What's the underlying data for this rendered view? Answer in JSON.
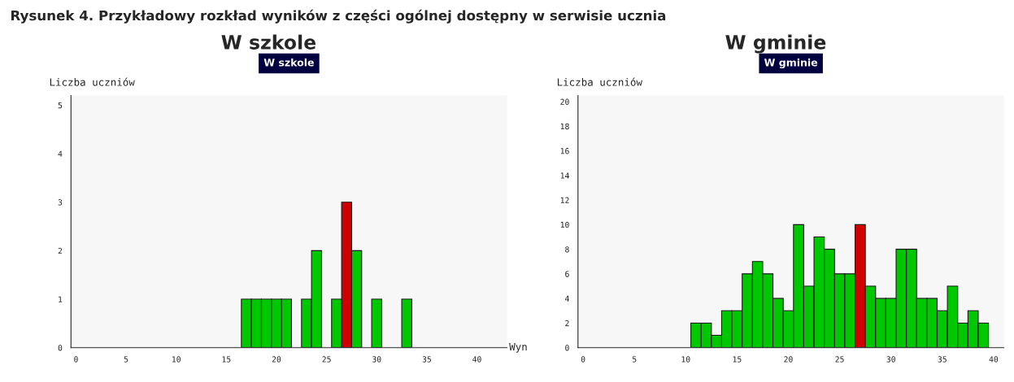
{
  "chart_data": [
    {
      "type": "bar",
      "title": "W szkole",
      "subtitle": "W szkole",
      "ylabel": "Liczba uczniów",
      "xlabel": "Wyn",
      "annotations": [
        "Rysunek 4. Przykładowy rozkład wyników z części ogólnej dostępny w serwisie ucznia"
      ],
      "x": [
        17,
        18,
        19,
        20,
        21,
        23,
        24,
        26,
        27,
        28,
        30,
        33
      ],
      "values": [
        1,
        1,
        1,
        1,
        1,
        1,
        2,
        1,
        3,
        2,
        1,
        1
      ],
      "colors": [
        "#00c800",
        "#00c800",
        "#00c800",
        "#00c800",
        "#00c800",
        "#00c800",
        "#00c800",
        "#00c800",
        "#d00000",
        "#00c800",
        "#00c800",
        "#00c800"
      ],
      "xlim": [
        -0.5,
        43
      ],
      "xticks": [
        0,
        5,
        10,
        15,
        20,
        25,
        30,
        35,
        40
      ],
      "ylim": [
        0,
        5.2
      ],
      "yticks": [
        0,
        1,
        2,
        3,
        4,
        5
      ],
      "grid": false,
      "legend": false
    },
    {
      "type": "bar",
      "title": "W gminie",
      "subtitle": "W gminie",
      "ylabel": "Liczba uczniów",
      "x": [
        11,
        12,
        13,
        14,
        15,
        16,
        17,
        18,
        19,
        20,
        21,
        22,
        23,
        24,
        25,
        26,
        27,
        28,
        29,
        30,
        31,
        32,
        33,
        34,
        35,
        36,
        37,
        38,
        39
      ],
      "values": [
        2,
        2,
        1,
        3,
        3,
        6,
        7,
        6,
        4,
        3,
        10,
        5,
        9,
        8,
        6,
        6,
        10,
        5,
        4,
        4,
        8,
        8,
        4,
        4,
        3,
        5,
        2,
        3,
        2
      ],
      "colors": [
        "#00c800",
        "#00c800",
        "#00c800",
        "#00c800",
        "#00c800",
        "#00c800",
        "#00c800",
        "#00c800",
        "#00c800",
        "#00c800",
        "#00c800",
        "#00c800",
        "#00c800",
        "#00c800",
        "#00c800",
        "#00c800",
        "#d00000",
        "#00c800",
        "#00c800",
        "#00c800",
        "#00c800",
        "#00c800",
        "#00c800",
        "#00c800",
        "#00c800",
        "#00c800",
        "#00c800",
        "#00c800",
        "#00c800"
      ],
      "xlim": [
        -0.5,
        41
      ],
      "xticks": [
        0,
        5,
        10,
        15,
        20,
        25,
        30,
        35,
        40
      ],
      "ylim": [
        0,
        20.5
      ],
      "yticks": [
        0,
        2,
        4,
        6,
        8,
        10,
        12,
        14,
        16,
        18,
        20
      ],
      "grid": false,
      "legend": false
    }
  ]
}
